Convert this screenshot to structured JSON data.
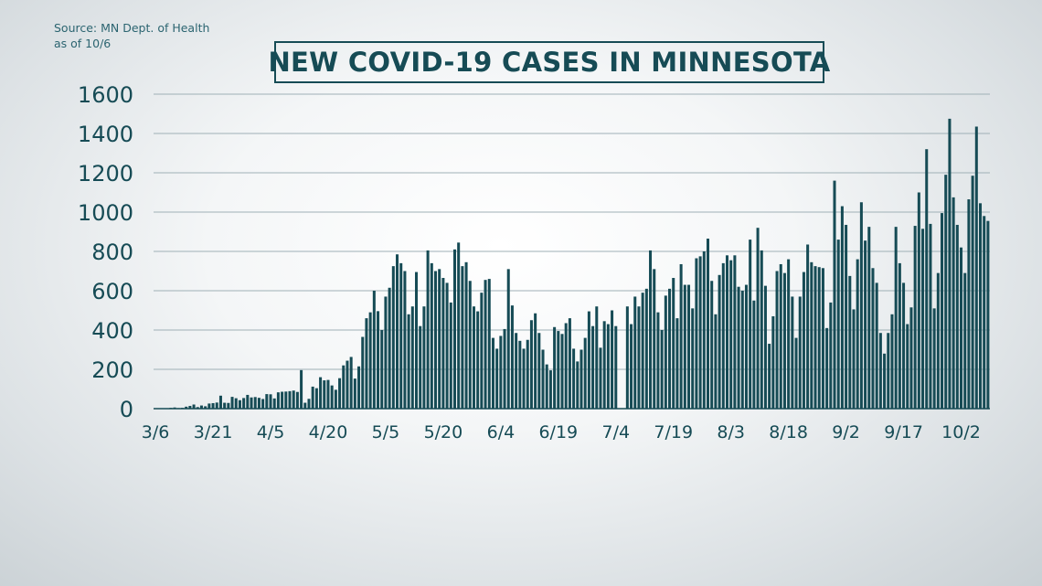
{
  "source": {
    "line1": "Source: MN Dept. of Health",
    "line2": "as of 10/6"
  },
  "colors": {
    "bar": "#164b55",
    "grid": "#9fb0b6",
    "text": "#164b55"
  },
  "chart_data": {
    "type": "bar",
    "title": "NEW COVID-19 CASES IN MINNESOTA",
    "xlabel": "",
    "ylabel": "",
    "ylim": [
      0,
      1600
    ],
    "yticks": [
      0,
      200,
      400,
      600,
      800,
      1000,
      1200,
      1400,
      1600
    ],
    "grid": true,
    "start_date": "3/6",
    "end_date": "10/6",
    "xtick_labels": [
      "3/6",
      "3/21",
      "4/5",
      "4/20",
      "5/5",
      "5/20",
      "6/4",
      "6/19",
      "7/4",
      "7/19",
      "8/3",
      "8/18",
      "9/2",
      "9/17",
      "10/2"
    ],
    "values": [
      1,
      1,
      0,
      2,
      4,
      6,
      3,
      4,
      10,
      14,
      21,
      8,
      16,
      12,
      26,
      28,
      31,
      66,
      30,
      29,
      60,
      53,
      43,
      54,
      70,
      57,
      59,
      55,
      49,
      74,
      73,
      52,
      83,
      86,
      87,
      89,
      92,
      85,
      196,
      30,
      50,
      112,
      104,
      160,
      144,
      146,
      118,
      96,
      155,
      220,
      244,
      263,
      153,
      215,
      365,
      460,
      490,
      600,
      496,
      400,
      570,
      615,
      725,
      785,
      740,
      700,
      480,
      520,
      695,
      420,
      520,
      805,
      740,
      700,
      710,
      665,
      640,
      540,
      810,
      845,
      725,
      745,
      650,
      520,
      495,
      590,
      655,
      660,
      360,
      305,
      370,
      405,
      710,
      525,
      385,
      345,
      305,
      350,
      450,
      485,
      385,
      300,
      225,
      195,
      415,
      395,
      380,
      435,
      460,
      305,
      240,
      300,
      360,
      495,
      420,
      520,
      310,
      445,
      430,
      500,
      420,
      0,
      0,
      520,
      430,
      570,
      520,
      590,
      610,
      805,
      710,
      490,
      400,
      575,
      610,
      665,
      460,
      735,
      630,
      630,
      510,
      765,
      775,
      800,
      865,
      650,
      480,
      680,
      740,
      780,
      755,
      780,
      620,
      600,
      630,
      860,
      550,
      920,
      805,
      625,
      330,
      470,
      700,
      735,
      690,
      760,
      570,
      360,
      570,
      695,
      835,
      745,
      725,
      720,
      715,
      410,
      540,
      1160,
      860,
      1030,
      935,
      675,
      505,
      760,
      1050,
      855,
      925,
      715,
      640,
      385,
      280,
      385,
      480,
      925,
      740,
      640,
      430,
      515,
      930,
      1100,
      915,
      1320,
      940,
      510,
      690,
      995,
      1190,
      1475,
      1075,
      935,
      820,
      690,
      1065,
      1185,
      1435,
      1045,
      980,
      955
    ]
  }
}
